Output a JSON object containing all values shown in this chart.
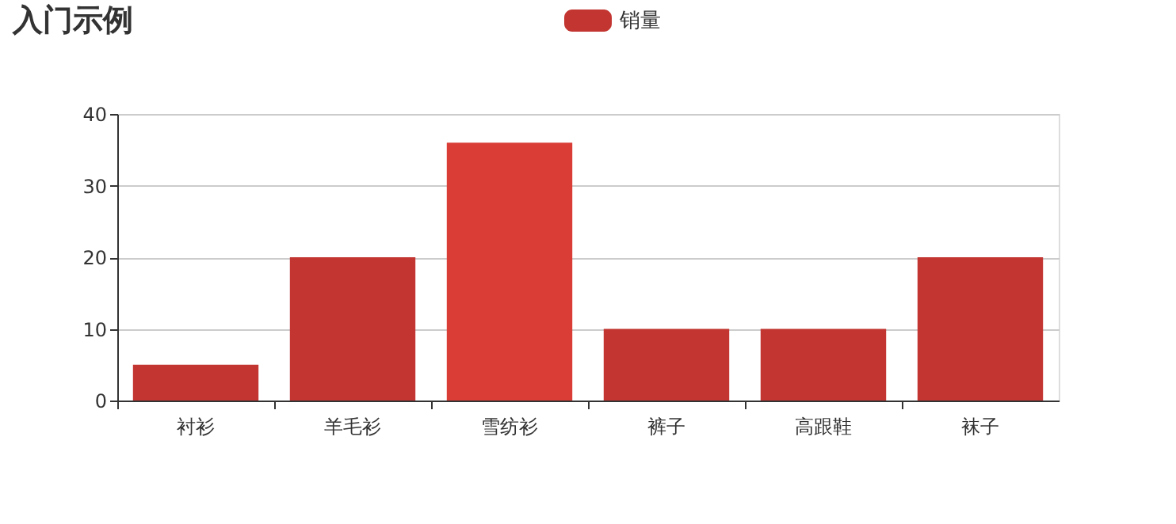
{
  "chart_data": {
    "type": "bar",
    "title": "入门示例",
    "categories": [
      "衬衫",
      "羊毛衫",
      "雪纺衫",
      "裤子",
      "高跟鞋",
      "袜子"
    ],
    "series": [
      {
        "name": "销量",
        "color": "#c23531",
        "values": [
          5,
          20,
          36,
          10,
          10,
          20
        ],
        "colors": [
          "#c23531",
          "#c23531",
          "#da3c36",
          "#c23531",
          "#c23531",
          "#c23531"
        ]
      }
    ],
    "ylim": [
      0,
      40
    ],
    "yticks": [
      0,
      10,
      20,
      30,
      40
    ],
    "grid": "y",
    "legend": "top"
  }
}
